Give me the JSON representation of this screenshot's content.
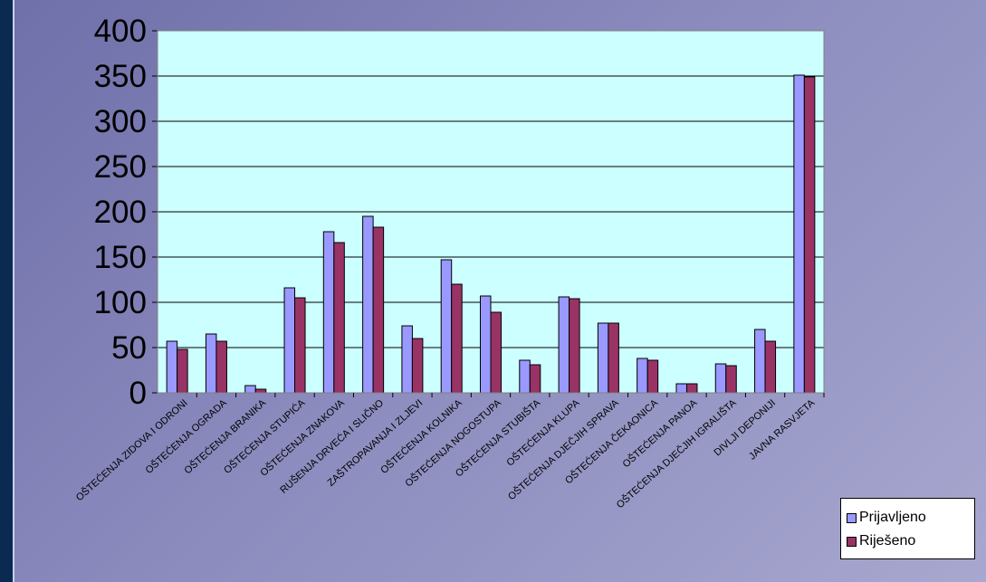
{
  "chart_data": {
    "type": "bar",
    "categories": [
      "OŠTEĆENJA ZIDOVA I ODRONI",
      "OŠTEĆENJA OGRADA",
      "OŠTEĆENJA BRANIKA",
      "OŠTEĆENJA STUPIĆA",
      "OŠTEĆENJA ZNAKOVA",
      "RUŠENJA DRVEĆA I SLIČNO",
      "ZAŠTROPAVANJA I ZLJEVI",
      "OŠTEĆENJA KOLNIKA",
      "OŠTEĆENJA NOGOSTUPA",
      "OŠTEĆENJA STUBIŠTA",
      "OŠTEĆENJA KLUPA",
      "OŠTEĆENJA DJEČJIH SPRAVA",
      "OŠTEĆENJA ČEKAONICA",
      "OŠTEĆENJA PANOA",
      "OŠTEĆENJA DJEČJIH IGRALIŠTA",
      "DIVLJI DEPONIJI",
      "JAVNA RASVJETA"
    ],
    "series": [
      {
        "name": "Prijavljeno",
        "color": "#9999ff",
        "values": [
          57,
          65,
          8,
          116,
          178,
          195,
          74,
          147,
          107,
          36,
          106,
          77,
          38,
          10,
          32,
          70,
          351
        ]
      },
      {
        "name": "Riješeno",
        "color": "#993366",
        "values": [
          48,
          57,
          4,
          105,
          166,
          183,
          60,
          120,
          89,
          31,
          104,
          77,
          36,
          10,
          30,
          57,
          349
        ]
      }
    ],
    "ylim": [
      0,
      400
    ],
    "yticks": [
      "0",
      "50",
      "100",
      "150",
      "200",
      "250",
      "300",
      "350",
      "400"
    ],
    "grid": true,
    "plot_background": "#ccffff",
    "legend_position": "bottom-right"
  }
}
